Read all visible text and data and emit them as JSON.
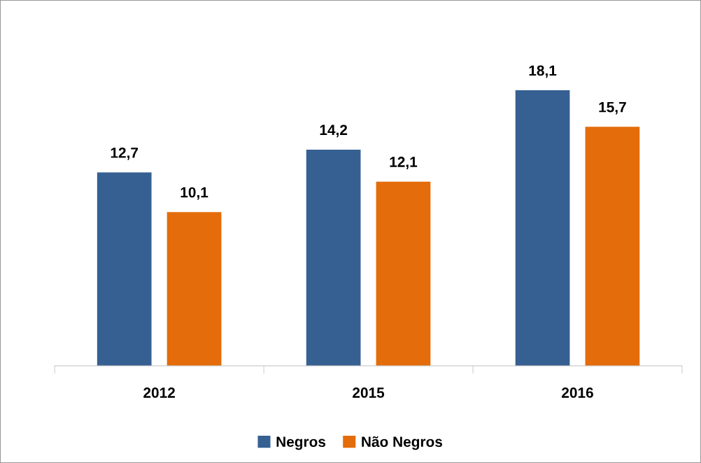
{
  "chart_data": {
    "type": "bar",
    "categories": [
      "2012",
      "2015",
      "2016"
    ],
    "series": [
      {
        "name": "Negros",
        "color": "#376092",
        "values": [
          12.7,
          14.2,
          18.1
        ],
        "value_labels": [
          "12,7",
          "14,2",
          "18,1"
        ]
      },
      {
        "name": "Não Negros",
        "color": "#e46c0a",
        "values": [
          10.1,
          12.1,
          15.7
        ],
        "value_labels": [
          "10,1",
          "12,1",
          "15,7"
        ]
      }
    ],
    "legend": "bottom",
    "grid": false,
    "tick_labels": "x"
  }
}
